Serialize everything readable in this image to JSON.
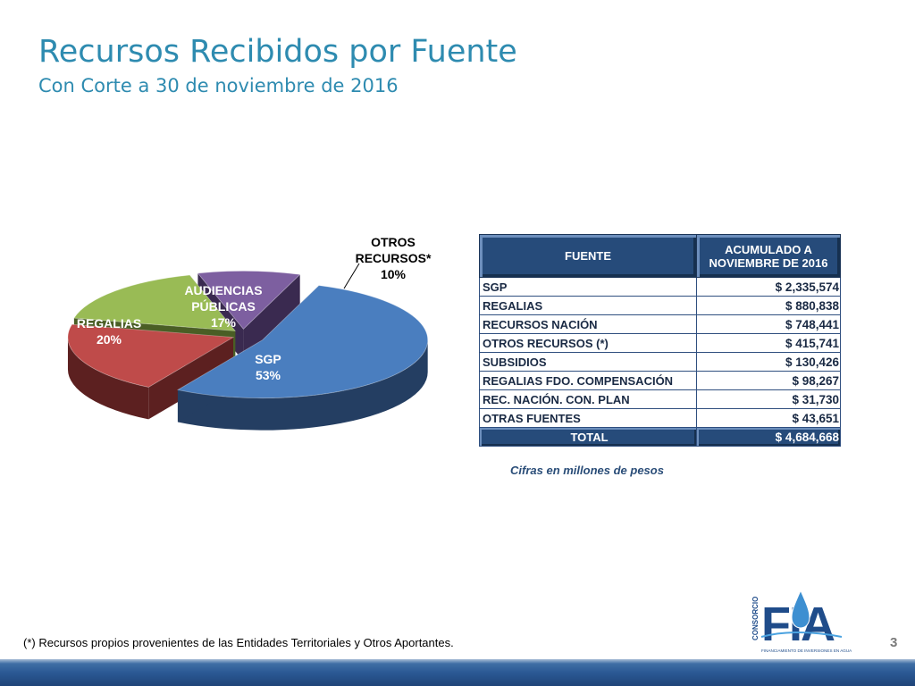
{
  "header": {
    "title": "Recursos Recibidos por Fuente",
    "subtitle": "Con Corte a 30 de noviembre de 2016"
  },
  "chart_data": [
    {
      "type": "pie",
      "style": "3d-exploded",
      "slices": [
        {
          "name_lines": [
            "SGP"
          ],
          "percent_label": "53%",
          "value": 53,
          "color": "#4a7ebf",
          "side_color": "#243e62"
        },
        {
          "name_lines": [
            "REGALIAS"
          ],
          "percent_label": "20%",
          "value": 20,
          "color": "#bf4b4a",
          "side_color": "#5c2020"
        },
        {
          "name_lines": [
            "AUDIENCIAS",
            "PÚBLICAS"
          ],
          "percent_label": "17%",
          "value": 17,
          "color": "#99bb55",
          "side_color": "#4a5e25"
        },
        {
          "name_lines": [
            "OTROS",
            "RECURSOS*"
          ],
          "percent_label": "10%",
          "value": 10,
          "color": "#7d5fa0",
          "side_color": "#3a2a50"
        }
      ]
    },
    {
      "type": "table",
      "columns": [
        "FUENTE",
        "ACUMULADO A NOVIEMBRE DE 2016"
      ],
      "rows": [
        [
          "SGP",
          "$ 2,335,574"
        ],
        [
          "REGALIAS",
          "$ 880,838"
        ],
        [
          "RECURSOS NACIÓN",
          "$ 748,441"
        ],
        [
          "OTROS RECURSOS (*)",
          "$ 415,741"
        ],
        [
          "SUBSIDIOS",
          "$ 130,426"
        ],
        [
          "REGALIAS FDO. COMPENSACIÓN",
          "$ 98,267"
        ],
        [
          "REC. NACIÓN.  CON. PLAN",
          "$ 31,730"
        ],
        [
          "OTRAS FUENTES",
          "$ 43,651"
        ]
      ],
      "total": [
        "TOTAL",
        "$ 4,684,668"
      ]
    }
  ],
  "table_header": {
    "col1": "FUENTE",
    "col2_line1": "ACUMULADO A",
    "col2_line2": "NOVIEMBRE DE 2016"
  },
  "table_note": "Cifras en millones de pesos",
  "footnote": "(*) Recursos propios provenientes de  las Entidades Territoriales y Otros Aportantes.",
  "page_number": "3",
  "logo": {
    "vertical_text": "CONSORCIO",
    "letters": "FIA",
    "tagline": "FINANCIAMIENTO DE INVERSIONES EN AGUA",
    "color": "#1f4c8a"
  }
}
